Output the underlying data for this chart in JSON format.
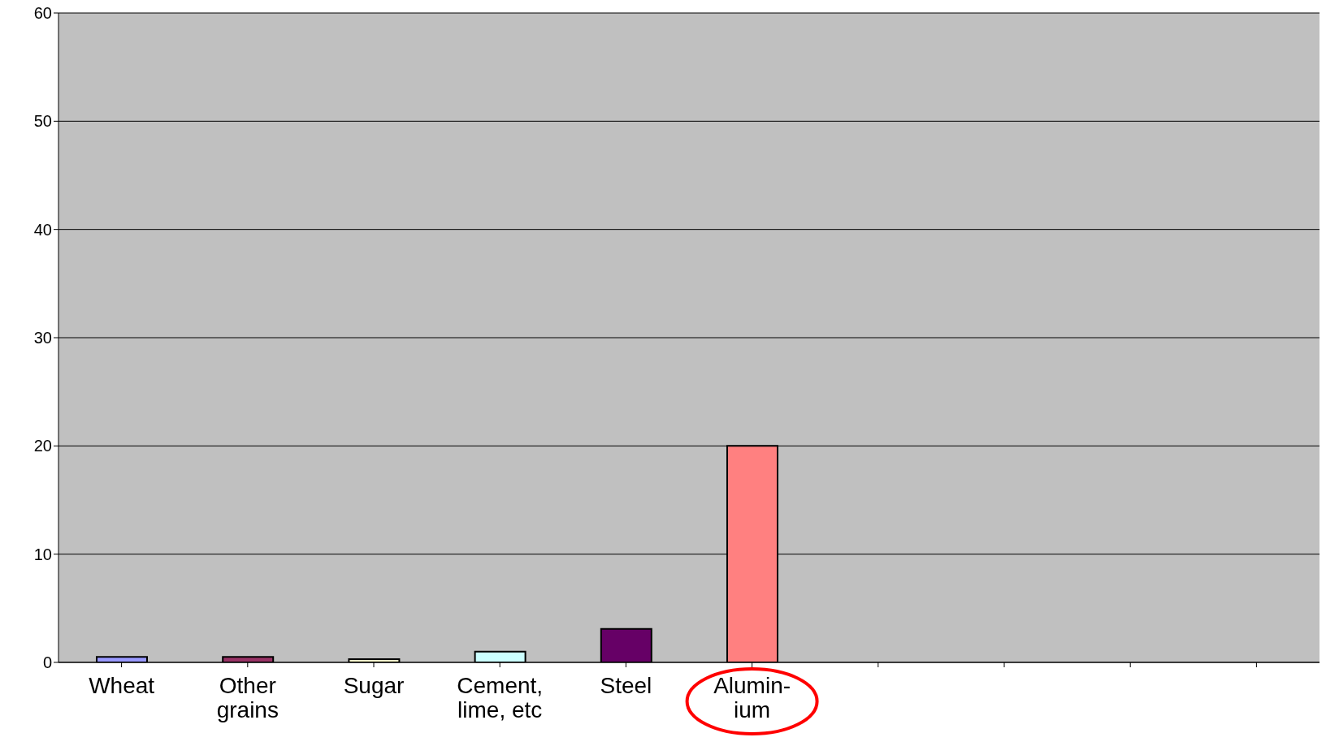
{
  "chart_data": {
    "type": "bar",
    "categories": [
      "Wheat",
      "Other\ngrains",
      "Sugar",
      "Cement,\nlime, etc",
      "Steel",
      "Alumin-\nium",
      null,
      null,
      null,
      null
    ],
    "values": [
      0.5,
      0.5,
      0.3,
      1,
      3.1,
      20,
      null,
      null,
      null,
      null
    ],
    "colors": [
      "#9999ff",
      "#993366",
      "#ffffcc",
      "#ccffff",
      "#660066",
      "#ff8080",
      "#c0c0c0",
      "#c0c0c0",
      "#c0c0c0",
      "#c0c0c0"
    ],
    "ylim": [
      0,
      60
    ],
    "yticks": [
      0,
      10,
      20,
      30,
      40,
      50,
      60
    ],
    "grid": "y"
  }
}
